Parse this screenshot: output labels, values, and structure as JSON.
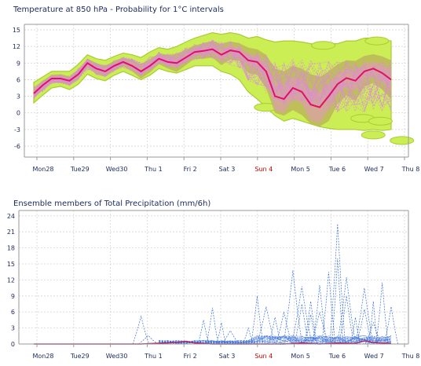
{
  "colors": {
    "prob_outer": "#ccee55",
    "prob_mid": "#bbb65a",
    "members": "#dd88dd",
    "median": "#e0106a",
    "precip_members": "#3a70d8",
    "precip_median": "#aa2266",
    "axis_text": "#1c2a5a",
    "sunday_text": "#d40000"
  },
  "chart_data": [
    {
      "type": "area",
      "title": "Temperature at 850 hPa - Probability for 1°C intervals",
      "ylim": [
        -8,
        16
      ],
      "yticks": [
        15,
        12,
        9,
        6,
        3,
        0,
        -3,
        -6
      ],
      "grid": true,
      "x_labels": [
        "Mon28",
        "Tue29",
        "Wed30",
        "Thu 1",
        "Fri 2",
        "Sat 3",
        "Sun 4",
        "Mon 5",
        "Tue 6",
        "Wed 7",
        "Thu 8"
      ],
      "sunday_label": "Sun 4",
      "x_range_days": [
        0,
        10.5
      ],
      "median": {
        "x": [
          0,
          0.25,
          0.5,
          0.75,
          1,
          1.25,
          1.5,
          1.75,
          2,
          2.25,
          2.5,
          2.75,
          3,
          3.25,
          3.5,
          3.75,
          4,
          4.25,
          4.5,
          4.75,
          5,
          5.25,
          5.5,
          5.75,
          6,
          6.25,
          6.5,
          6.75,
          7,
          7.25,
          7.5,
          7.75,
          8,
          8.25,
          8.5,
          8.75,
          9,
          9.25,
          9.5,
          9.75,
          10
        ],
        "y": [
          3.5,
          5,
          6.2,
          6.2,
          5.8,
          7,
          9,
          8,
          7.5,
          8.5,
          9.2,
          8.5,
          7.5,
          8.5,
          9.8,
          9.2,
          9,
          10,
          11,
          11.2,
          11.5,
          10.5,
          11.3,
          11,
          9.5,
          9.2,
          7.5,
          3,
          2.5,
          4.5,
          3.8,
          1.5,
          1,
          3,
          5.2,
          6.3,
          5.8,
          7.5,
          8,
          7.2,
          6
        ]
      },
      "band_outer": {
        "upper": [
          5.5,
          6.5,
          7.5,
          7.5,
          7.5,
          8.8,
          10.5,
          9.8,
          9.5,
          10.2,
          10.8,
          10.5,
          10,
          11,
          11.8,
          11.5,
          12,
          12.8,
          13.5,
          14,
          14.5,
          14.2,
          14.5,
          14.2,
          13.5,
          13.8,
          13.2,
          12.8,
          13,
          13,
          12.8,
          12.5,
          12.2,
          12.5,
          12.5,
          13,
          13,
          13.5,
          13.5,
          13.2,
          13
        ],
        "lower": [
          1.8,
          3.2,
          4.5,
          4.8,
          4.2,
          5.2,
          7,
          6.2,
          5.8,
          6.8,
          7.5,
          6.8,
          6,
          6.8,
          8,
          7.5,
          7.2,
          7.8,
          8.5,
          8.5,
          8.5,
          7.5,
          7,
          6,
          3.8,
          2.5,
          1,
          -0.5,
          -1.5,
          -1,
          -1.5,
          -2,
          -2.5,
          -2.8,
          -3,
          -3,
          -3,
          -3.2,
          -3,
          -3.2,
          -3
        ]
      },
      "band_mid": {
        "upper": [
          4.5,
          5.8,
          6.9,
          7,
          6.6,
          7.9,
          9.8,
          9,
          8.5,
          9.4,
          10,
          9.5,
          8.8,
          9.7,
          10.8,
          10.5,
          10.6,
          11.4,
          12.2,
          12.6,
          13,
          12.4,
          12.9,
          12.6,
          11.8,
          11.5,
          10.5,
          8,
          7.5,
          8.5,
          8,
          7,
          6.5,
          7.5,
          8.8,
          9.5,
          9.4,
          10.3,
          10.6,
          10.2,
          9.5
        ],
        "lower": [
          2.6,
          4.2,
          5.5,
          5.4,
          5,
          6.1,
          8.2,
          7,
          6.5,
          7.6,
          8.4,
          7.5,
          6.2,
          7.3,
          8.8,
          8,
          7.4,
          8.6,
          9.8,
          9.8,
          10,
          8.6,
          9.7,
          9.4,
          7.2,
          6.9,
          4.5,
          0,
          -0.5,
          0.5,
          -0.4,
          -2,
          -2.5,
          -1.5,
          1.6,
          3.1,
          2.2,
          4.7,
          5.4,
          4.2,
          2.5
        ]
      },
      "band_core": {
        "upper": [
          4,
          5.5,
          6.6,
          6.6,
          6.2,
          7.4,
          9.4,
          8.5,
          8,
          8.9,
          9.6,
          9,
          8.1,
          9.1,
          10.4,
          9.9,
          9.8,
          10.7,
          11.6,
          11.9,
          12.2,
          11.4,
          12.1,
          11.8,
          10.6,
          10.3,
          9,
          5.5,
          5,
          6.5,
          5.9,
          4.3,
          3.8,
          5.2,
          7,
          7.9,
          7.6,
          8.9,
          9.3,
          8.7,
          7.8
        ],
        "lower": [
          3,
          4.5,
          5.8,
          5.8,
          5.4,
          6.6,
          8.6,
          7.5,
          7,
          8.1,
          8.8,
          8,
          6.9,
          7.9,
          9.2,
          8.5,
          8.2,
          9.3,
          10.4,
          10.5,
          10.8,
          9.6,
          10.5,
          10.2,
          8.4,
          8.1,
          6,
          0.5,
          0,
          2.5,
          1.7,
          -1.3,
          -1.8,
          0.8,
          3.4,
          4.7,
          4,
          6.1,
          6.7,
          5.7,
          4.2
        ]
      },
      "islands": [
        {
          "x": 8.1,
          "y": 12.2
        },
        {
          "x": 9.6,
          "y": 13
        },
        {
          "x": 9.2,
          "y": -1
        },
        {
          "x": 9.7,
          "y": -1.5
        },
        {
          "x": 9.5,
          "y": -4
        },
        {
          "x": 10.3,
          "y": -5
        },
        {
          "x": 6.5,
          "y": 1
        }
      ]
    },
    {
      "type": "line",
      "title": "Ensemble members of Total Precipitation (mm/6h)",
      "ylim": [
        0,
        25
      ],
      "yticks": [
        24,
        21,
        18,
        15,
        12,
        9,
        6,
        3,
        0
      ],
      "grid": true,
      "x_labels": [
        "Mon28",
        "Tue29",
        "Wed30",
        "Thu 1",
        "Fri 2",
        "Sat 3",
        "Sun 4",
        "Mon 5",
        "Tue 6",
        "Wed 7",
        "Thu 8"
      ],
      "sunday_label": "Sun 4",
      "x_range_days": [
        0,
        10.5
      ],
      "spikes": [
        {
          "x": 3.0,
          "v": 5.2
        },
        {
          "x": 3.2,
          "v": 1.6
        },
        {
          "x": 5.0,
          "v": 6.8
        },
        {
          "x": 5.25,
          "v": 4.0
        },
        {
          "x": 4.75,
          "v": 4.5
        },
        {
          "x": 5.5,
          "v": 2.5
        },
        {
          "x": 6.0,
          "v": 3.0
        },
        {
          "x": 6.25,
          "v": 9.0
        },
        {
          "x": 6.5,
          "v": 7.0
        },
        {
          "x": 6.75,
          "v": 5.0
        },
        {
          "x": 7.0,
          "v": 6.0
        },
        {
          "x": 7.25,
          "v": 13.8
        },
        {
          "x": 7.5,
          "v": 10.8
        },
        {
          "x": 7.5,
          "v": 7.5
        },
        {
          "x": 7.75,
          "v": 5.5
        },
        {
          "x": 8.0,
          "v": 11.0
        },
        {
          "x": 8.25,
          "v": 13.5
        },
        {
          "x": 8.5,
          "v": 22.5
        },
        {
          "x": 8.5,
          "v": 16.0
        },
        {
          "x": 8.75,
          "v": 12.5
        },
        {
          "x": 9.0,
          "v": 5.0
        },
        {
          "x": 9.25,
          "v": 10.5
        },
        {
          "x": 9.5,
          "v": 8.0
        },
        {
          "x": 9.75,
          "v": 11.5
        },
        {
          "x": 10.0,
          "v": 7.0
        },
        {
          "x": 8.75,
          "v": 9.0
        },
        {
          "x": 9.25,
          "v": 6.5
        },
        {
          "x": 9.5,
          "v": 4.0
        },
        {
          "x": 8.0,
          "v": 6.0
        },
        {
          "x": 7.75,
          "v": 8.0
        }
      ],
      "median": {
        "x": [
          0,
          3,
          4.0,
          4.25,
          4.5,
          5,
          6,
          7,
          7.5,
          8,
          8.5,
          9,
          9.25,
          9.5,
          10
        ],
        "y": [
          0,
          0,
          0.3,
          0.5,
          0.2,
          0,
          0,
          0,
          0.2,
          0,
          0.2,
          0.1,
          0.6,
          0.3,
          0.1
        ]
      }
    }
  ]
}
